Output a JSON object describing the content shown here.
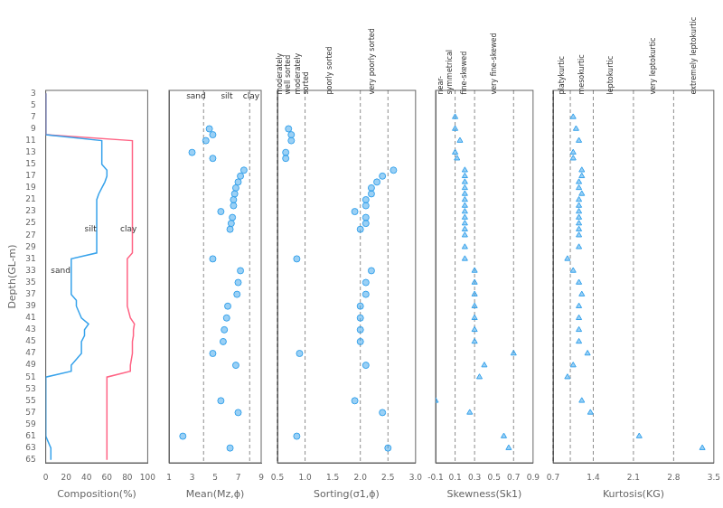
{
  "chart_data": [
    {
      "type": "line",
      "xlabel": "Composition(%)",
      "ylabel": "Depth(GL-m)",
      "y": [
        3,
        5,
        7,
        9,
        10,
        11,
        12,
        13,
        15,
        16,
        17,
        18,
        19,
        20,
        21,
        25,
        27,
        28,
        29,
        30,
        31,
        32,
        33,
        34,
        35,
        37,
        38,
        39,
        41,
        42,
        43,
        44,
        45,
        47,
        49,
        50,
        51,
        53,
        55,
        57,
        59,
        61,
        63,
        65
      ],
      "series": [
        {
          "x": [
            0,
            0,
            0,
            0,
            0,
            55,
            55,
            55,
            55,
            60,
            60,
            58,
            55,
            52,
            50,
            50,
            50,
            50,
            50,
            50,
            25,
            25,
            25,
            25,
            25,
            25,
            30,
            30,
            35,
            42,
            38,
            38,
            35,
            35,
            25,
            25,
            0,
            0,
            0,
            0,
            0,
            0,
            5,
            5
          ]
        },
        {
          "x": [
            0,
            0,
            0,
            0,
            0,
            85,
            85,
            85,
            85,
            85,
            85,
            85,
            85,
            85,
            85,
            85,
            85,
            85,
            85,
            85,
            80,
            80,
            80,
            80,
            80,
            80,
            80,
            80,
            83,
            87,
            86,
            86,
            85,
            85,
            83,
            83,
            60,
            60,
            60,
            60,
            60,
            60,
            60,
            60
          ]
        }
      ],
      "xlim": [
        0,
        100
      ],
      "xticks": [
        0,
        20,
        40,
        60,
        80,
        100
      ],
      "ylim": [
        65.5,
        2.5
      ],
      "yticks": [
        3,
        5,
        7,
        9,
        11,
        13,
        15,
        17,
        19,
        21,
        23,
        25,
        27,
        29,
        31,
        33,
        35,
        37,
        39,
        41,
        43,
        45,
        47,
        49,
        51,
        53,
        55,
        57,
        59,
        61,
        63,
        65
      ],
      "grid": false,
      "annotations": [
        {
          "text": "sand",
          "x": 5,
          "y": 33
        },
        {
          "text": "silt",
          "x": 38,
          "y": 26
        },
        {
          "text": "clay",
          "x": 73,
          "y": 26
        }
      ]
    },
    {
      "type": "scatter",
      "xlabel": "Mean(Mz,ϕ)",
      "x": [
        4.5,
        4.8,
        4.2,
        3.0,
        4.8,
        7.5,
        7.2,
        7.0,
        6.8,
        6.7,
        6.6,
        6.6,
        5.5,
        6.5,
        6.4,
        6.3,
        4.8,
        7.2,
        7.0,
        6.9,
        6.1,
        6.0,
        5.8,
        5.7,
        4.8,
        6.8,
        5.5,
        7.0,
        2.2,
        6.3
      ],
      "y": [
        9,
        10,
        11,
        13,
        14,
        16,
        17,
        18,
        19,
        20,
        21,
        22,
        23,
        24,
        25,
        26,
        31,
        33,
        35,
        37,
        39,
        41,
        43,
        45,
        47,
        49,
        55,
        57,
        61,
        63
      ],
      "marker": "circle",
      "vlines": [
        4.0,
        8.0
      ],
      "xlim": [
        1,
        9
      ],
      "xticks": [
        1,
        3,
        5,
        7,
        9
      ],
      "ylim": [
        65.5,
        2.5
      ],
      "yticks": [
        3,
        5,
        7,
        9,
        11,
        13,
        15,
        17,
        19,
        21,
        23,
        25,
        27,
        29,
        31,
        33,
        35,
        37,
        39,
        41,
        43,
        45,
        47,
        49,
        51,
        53,
        55,
        57,
        59,
        61,
        63,
        65
      ],
      "grid": false,
      "tick_labels": "x",
      "annotations": [
        {
          "text": "sand",
          "x": 2.5,
          "y": 3.5
        },
        {
          "text": "silt",
          "x": 5.5,
          "y": 3.5
        },
        {
          "text": "clay",
          "x": 8.2,
          "y": 3.5
        }
      ]
    },
    {
      "type": "scatter",
      "xlabel": "Sorting(σ1,ϕ)",
      "x": [
        0.7,
        0.75,
        0.75,
        0.65,
        0.65,
        2.6,
        2.4,
        2.3,
        2.2,
        2.2,
        2.1,
        2.1,
        1.9,
        2.1,
        2.1,
        2.0,
        0.85,
        2.2,
        2.1,
        2.1,
        2.0,
        2.0,
        2.0,
        2.0,
        0.9,
        2.1,
        1.9,
        2.4,
        0.85,
        2.5
      ],
      "y": [
        9,
        10,
        11,
        13,
        14,
        16,
        17,
        18,
        19,
        20,
        21,
        22,
        23,
        24,
        25,
        26,
        31,
        33,
        35,
        37,
        39,
        41,
        43,
        45,
        47,
        49,
        55,
        57,
        61,
        63
      ],
      "marker": "circle",
      "vlines": [
        0.5,
        1.0,
        2.0,
        2.5
      ],
      "xlim": [
        0.5,
        3.0
      ],
      "xticks": [
        0.5,
        {
          "value": 1.0,
          "label": "1.0"
        },
        1.5,
        {
          "value": 2.0,
          "label": "2.0"
        },
        2.5,
        {
          "value": 3.0,
          "label": "3.0"
        }
      ],
      "ylim": [
        65.5,
        2.5
      ],
      "yticks": [
        3,
        5,
        7,
        9,
        11,
        13,
        15,
        17,
        19,
        21,
        23,
        25,
        27,
        29,
        31,
        33,
        35,
        37,
        39,
        41,
        43,
        45,
        47,
        49,
        51,
        53,
        55,
        57,
        59,
        61,
        63,
        65
      ],
      "grid": false,
      "tick_labels": "x",
      "annotations": [
        {
          "text": "moderately\nwell sorted",
          "x": 0.62,
          "y": 3.2,
          "orientation": "vertical"
        },
        {
          "text": "moderately\nsorted",
          "x": 0.8,
          "y": 3.2,
          "orientation": "vertical"
        },
        {
          "text": "poorly sorted",
          "x": 1.45,
          "y": 3.2,
          "orientation": "vertical"
        },
        {
          "text": "very poorly sorted",
          "x": 2.22,
          "y": 3.2,
          "orientation": "vertical"
        }
      ]
    },
    {
      "type": "scatter",
      "xlabel": "Skewness(Sk1)",
      "x": [
        0.1,
        0.1,
        0.15,
        0.1,
        0.12,
        0.2,
        0.2,
        0.2,
        0.2,
        0.2,
        0.2,
        0.2,
        0.2,
        0.2,
        0.2,
        0.2,
        0.2,
        0.2,
        0.2,
        0.3,
        0.3,
        0.3,
        0.3,
        0.3,
        0.3,
        0.3,
        0.7,
        0.4,
        0.35,
        -0.1,
        0.25,
        0.6,
        0.65
      ],
      "y": [
        7,
        9,
        11,
        13,
        14,
        16,
        17,
        18,
        19,
        20,
        21,
        22,
        23,
        24,
        25,
        26,
        27,
        29,
        31,
        33,
        35,
        37,
        39,
        41,
        43,
        45,
        47,
        49,
        51,
        55,
        57,
        61,
        63
      ],
      "marker": "triangle",
      "vlines": [
        0.1,
        0.3,
        0.7
      ],
      "xlim": [
        -0.1,
        0.9
      ],
      "xticks": [
        -0.1,
        0.1,
        0.3,
        0.5,
        0.7,
        0.9
      ],
      "ylim": [
        65.5,
        2.5
      ],
      "yticks": [
        3,
        5,
        7,
        9,
        11,
        13,
        15,
        17,
        19,
        21,
        23,
        25,
        27,
        29,
        31,
        33,
        35,
        37,
        39,
        41,
        43,
        45,
        47,
        49,
        51,
        53,
        55,
        57,
        59,
        61,
        63,
        65
      ],
      "grid": false,
      "tick_labels": "x",
      "annotations": [
        {
          "text": "near-\nsymmetrical",
          "x": 0.0,
          "y": 3.2,
          "orientation": "vertical"
        },
        {
          "text": "fine-skewed",
          "x": 0.2,
          "y": 3.2,
          "orientation": "vertical"
        },
        {
          "text": "very fine-skewed",
          "x": 0.5,
          "y": 3.2,
          "orientation": "vertical"
        }
      ]
    },
    {
      "type": "scatter",
      "xlabel": "Kurtosis(KG)",
      "x": [
        1.05,
        1.1,
        1.15,
        1.05,
        1.05,
        1.2,
        1.2,
        1.15,
        1.15,
        1.2,
        1.15,
        1.15,
        1.15,
        1.15,
        1.15,
        1.15,
        1.15,
        1.15,
        0.95,
        1.05,
        1.15,
        1.2,
        1.15,
        1.15,
        1.15,
        1.15,
        1.3,
        1.05,
        0.95,
        1.2,
        1.35,
        2.2,
        3.3
      ],
      "y": [
        7,
        9,
        11,
        13,
        14,
        16,
        17,
        18,
        19,
        20,
        21,
        22,
        23,
        24,
        25,
        26,
        27,
        29,
        31,
        33,
        35,
        37,
        39,
        41,
        43,
        45,
        47,
        49,
        51,
        55,
        57,
        61,
        63
      ],
      "marker": "triangle",
      "vlines": [
        0.7,
        1.0,
        1.4,
        2.1,
        2.8
      ],
      "xlim": [
        0.7,
        3.5
      ],
      "xticks": [
        0.7,
        1.4,
        2.1,
        2.8,
        3.5
      ],
      "ylim": [
        65.5,
        2.5
      ],
      "yticks": [
        3,
        5,
        7,
        9,
        11,
        13,
        15,
        17,
        19,
        21,
        23,
        25,
        27,
        29,
        31,
        33,
        35,
        37,
        39,
        41,
        43,
        45,
        47,
        49,
        51,
        53,
        55,
        57,
        59,
        61,
        63,
        65
      ],
      "grid": false,
      "tick_labels": "x",
      "annotations": [
        {
          "text": "platykurtic",
          "x": 0.85,
          "y": 3.2,
          "orientation": "vertical"
        },
        {
          "text": "mesokurtic",
          "x": 1.2,
          "y": 3.2,
          "orientation": "vertical"
        },
        {
          "text": "leptokurtic",
          "x": 1.7,
          "y": 3.2,
          "orientation": "vertical"
        },
        {
          "text": "very leptokurtic",
          "x": 2.45,
          "y": 3.2,
          "orientation": "vertical"
        },
        {
          "text": "extremely leptokurtic",
          "x": 3.15,
          "y": 3.2,
          "orientation": "vertical"
        }
      ]
    }
  ]
}
